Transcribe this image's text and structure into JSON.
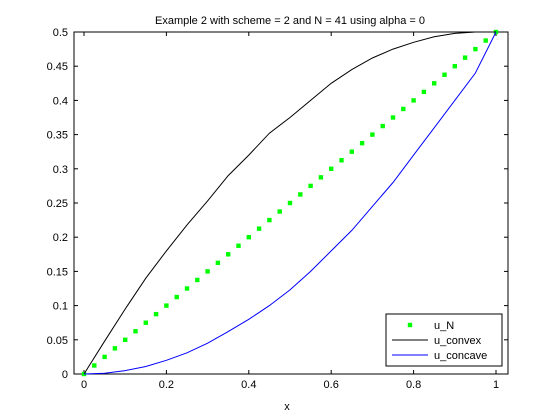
{
  "chart_data": {
    "type": "line",
    "title": "Example 2 with scheme = 2 and N = 41 using alpha = 0",
    "xlabel": "x",
    "ylabel": "",
    "xlim": [
      0,
      1
    ],
    "ylim": [
      0,
      0.5
    ],
    "xticks": [
      "0",
      "0.2",
      "0.4",
      "0.6",
      "0.8",
      "1"
    ],
    "yticks": [
      "0",
      "0.05",
      "0.1",
      "0.15",
      "0.2",
      "0.25",
      "0.3",
      "0.35",
      "0.4",
      "0.45",
      "0.5"
    ],
    "grid": false,
    "legend_position": "bottom-right",
    "series": [
      {
        "name": "u_N",
        "style": "markers",
        "color": "#00ff00",
        "x": [
          0,
          0.025,
          0.05,
          0.075,
          0.1,
          0.125,
          0.15,
          0.175,
          0.2,
          0.225,
          0.25,
          0.275,
          0.3,
          0.325,
          0.35,
          0.375,
          0.4,
          0.425,
          0.45,
          0.475,
          0.5,
          0.525,
          0.55,
          0.575,
          0.6,
          0.625,
          0.65,
          0.675,
          0.7,
          0.725,
          0.75,
          0.775,
          0.8,
          0.825,
          0.85,
          0.875,
          0.9,
          0.925,
          0.95,
          0.975,
          1
        ],
        "y": [
          0,
          0.0125,
          0.025,
          0.0375,
          0.05,
          0.0625,
          0.075,
          0.0875,
          0.1,
          0.1125,
          0.125,
          0.1375,
          0.15,
          0.1625,
          0.175,
          0.1875,
          0.2,
          0.2125,
          0.225,
          0.2375,
          0.25,
          0.2625,
          0.275,
          0.2875,
          0.3,
          0.3125,
          0.325,
          0.3375,
          0.35,
          0.3625,
          0.375,
          0.3875,
          0.4,
          0.4125,
          0.425,
          0.4375,
          0.45,
          0.4625,
          0.475,
          0.4875,
          0.5
        ]
      },
      {
        "name": "u_convex",
        "style": "line",
        "color": "#000000",
        "x": [
          0,
          0.05,
          0.1,
          0.15,
          0.2,
          0.25,
          0.3,
          0.35,
          0.4,
          0.45,
          0.5,
          0.55,
          0.6,
          0.65,
          0.7,
          0.75,
          0.8,
          0.85,
          0.9,
          0.95,
          1
        ],
        "y": [
          0,
          0.048,
          0.095,
          0.14,
          0.18,
          0.218,
          0.253,
          0.29,
          0.32,
          0.352,
          0.375,
          0.4,
          0.425,
          0.445,
          0.462,
          0.475,
          0.485,
          0.493,
          0.498,
          0.5,
          0.5
        ]
      },
      {
        "name": "u_concave",
        "style": "line",
        "color": "#0000ff",
        "x": [
          0,
          0.05,
          0.1,
          0.15,
          0.2,
          0.25,
          0.3,
          0.35,
          0.4,
          0.45,
          0.5,
          0.55,
          0.6,
          0.65,
          0.7,
          0.75,
          0.8,
          0.85,
          0.9,
          0.95,
          1
        ],
        "y": [
          0,
          0.001,
          0.005,
          0.011,
          0.02,
          0.031,
          0.045,
          0.062,
          0.08,
          0.1,
          0.123,
          0.15,
          0.18,
          0.21,
          0.245,
          0.28,
          0.32,
          0.36,
          0.4,
          0.44,
          0.5
        ]
      }
    ]
  }
}
